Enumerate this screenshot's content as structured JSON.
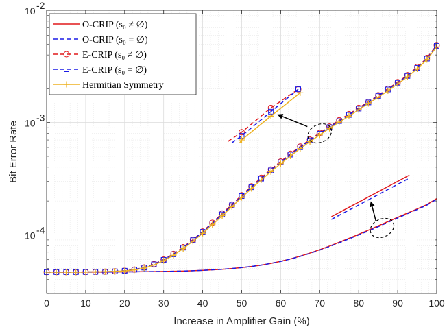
{
  "chart_data": {
    "type": "line",
    "xlabel": "Increase in Amplifier Gain (%)",
    "ylabel": "Bit Error Rate",
    "xlim": [
      0,
      100
    ],
    "ylim": [
      3e-05,
      0.01
    ],
    "yscale": "log",
    "grid": true,
    "minor_grid": true,
    "legend_position": "top-left",
    "x_ticks": [
      0,
      10,
      20,
      30,
      40,
      50,
      60,
      70,
      80,
      90,
      100
    ],
    "x_tick_labels": [
      "0",
      "10",
      "20",
      "30",
      "40",
      "50",
      "60",
      "70",
      "80",
      "90",
      "100"
    ],
    "y_ticks": [
      0.0001,
      0.001,
      0.01
    ],
    "y_tick_labels": [
      {
        "base": "10",
        "exp": "-4"
      },
      {
        "base": "10",
        "exp": "-3"
      },
      {
        "base": "10",
        "exp": "-2"
      }
    ],
    "legend": [
      {
        "label": "O-CRIP (s₀ ≠ ∅)",
        "color": "#e0191c",
        "dash": "solid",
        "marker": "none"
      },
      {
        "label": "O-CRIP (s₀ = ∅)",
        "color": "#1a1ae6",
        "dash": "dashed",
        "marker": "none"
      },
      {
        "label": "E-CRIP (s₀ ≠ ∅)",
        "color": "#e0191c",
        "dash": "dashed",
        "marker": "circle"
      },
      {
        "label": "E-CRIP (s₀ = ∅)",
        "color": "#1a1ae6",
        "dash": "dashed",
        "marker": "square"
      },
      {
        "label": "Hermitian Symmetry",
        "color": "#edb120",
        "dash": "solid",
        "marker": "plus"
      }
    ],
    "x": [
      0,
      2.5,
      5,
      7.5,
      10,
      12.5,
      15,
      17.5,
      20,
      22.5,
      25,
      27.5,
      30,
      32.5,
      35,
      37.5,
      40,
      42.5,
      45,
      47.5,
      50,
      52.5,
      55,
      57.5,
      60,
      62.5,
      65,
      67.5,
      70,
      72.5,
      75,
      77.5,
      80,
      82.5,
      85,
      87.5,
      90,
      92.5,
      95,
      97.5,
      100
    ],
    "series": [
      {
        "name": "O-CRIP (s₀ ≠ ∅)",
        "color": "#e0191c",
        "dash": "solid",
        "marker": "none",
        "values": [
          4.65e-05,
          4.65e-05,
          4.65e-05,
          4.65e-05,
          4.65e-05,
          4.65e-05,
          4.65e-05,
          4.66e-05,
          4.67e-05,
          4.68e-05,
          4.69e-05,
          4.7e-05,
          4.71e-05,
          4.73e-05,
          4.75e-05,
          4.78e-05,
          4.82e-05,
          4.87e-05,
          4.93e-05,
          5e-05,
          5.1e-05,
          5.22e-05,
          5.37e-05,
          5.56e-05,
          5.8e-05,
          6.1e-05,
          6.45e-05,
          6.87e-05,
          7.36e-05,
          7.92e-05,
          8.57e-05,
          9.3e-05,
          0.000101,
          0.00011,
          0.00012,
          0.000131,
          0.000143,
          0.000156,
          0.00017,
          0.000186,
          0.00021
        ]
      },
      {
        "name": "O-CRIP (s₀ = ∅)",
        "color": "#1a1ae6",
        "dash": "dashed",
        "marker": "none",
        "values": [
          4.65e-05,
          4.65e-05,
          4.65e-05,
          4.65e-05,
          4.65e-05,
          4.65e-05,
          4.65e-05,
          4.66e-05,
          4.67e-05,
          4.68e-05,
          4.69e-05,
          4.7e-05,
          4.71e-05,
          4.73e-05,
          4.75e-05,
          4.78e-05,
          4.82e-05,
          4.87e-05,
          4.93e-05,
          5e-05,
          5.1e-05,
          5.22e-05,
          5.37e-05,
          5.56e-05,
          5.79e-05,
          6.08e-05,
          6.42e-05,
          6.83e-05,
          7.3e-05,
          7.85e-05,
          8.48e-05,
          9.19e-05,
          9.98e-05,
          0.000108,
          0.000118,
          0.000129,
          0.000141,
          0.000154,
          0.000168,
          0.000184,
          0.000207
        ]
      },
      {
        "name": "E-CRIP (s₀ ≠ ∅)",
        "color": "#e0191c",
        "dash": "dashed",
        "marker": "circle",
        "values": [
          4.65e-05,
          4.65e-05,
          4.65e-05,
          4.65e-05,
          4.66e-05,
          4.67e-05,
          4.69e-05,
          4.72e-05,
          4.78e-05,
          4.9e-05,
          5.12e-05,
          5.48e-05,
          6.02e-05,
          6.75e-05,
          7.75e-05,
          9.05e-05,
          0.000107,
          0.000128,
          0.000155,
          0.000186,
          0.000225,
          0.00027,
          0.000322,
          0.000382,
          0.00045,
          0.000527,
          0.000612,
          0.000705,
          0.000808,
          0.000921,
          0.00105,
          0.00119,
          0.00135,
          0.00153,
          0.00175,
          0.002,
          0.00229,
          0.00264,
          0.00312,
          0.00376,
          0.0049
        ]
      },
      {
        "name": "E-CRIP (s₀ = ∅)",
        "color": "#1a1ae6",
        "dash": "dashed",
        "marker": "square",
        "values": [
          4.65e-05,
          4.65e-05,
          4.65e-05,
          4.65e-05,
          4.66e-05,
          4.67e-05,
          4.69e-05,
          4.72e-05,
          4.78e-05,
          4.89e-05,
          5.1e-05,
          5.45e-05,
          5.98e-05,
          6.7e-05,
          7.68e-05,
          8.95e-05,
          0.000106,
          0.000126,
          0.000152,
          0.000183,
          0.000221,
          0.000265,
          0.000316,
          0.000375,
          0.000442,
          0.000518,
          0.000602,
          0.000694,
          0.000796,
          0.000908,
          0.00103,
          0.00117,
          0.00133,
          0.00151,
          0.00172,
          0.00197,
          0.00226,
          0.0026,
          0.00307,
          0.00371,
          0.00482
        ]
      },
      {
        "name": "Hermitian Symmetry",
        "color": "#edb120",
        "dash": "solid",
        "marker": "plus",
        "values": [
          4.65e-05,
          4.65e-05,
          4.65e-05,
          4.65e-05,
          4.66e-05,
          4.67e-05,
          4.69e-05,
          4.71e-05,
          4.76e-05,
          4.86e-05,
          5.05e-05,
          5.38e-05,
          5.88e-05,
          6.57e-05,
          7.52e-05,
          8.76e-05,
          0.000103,
          0.000123,
          0.000148,
          0.000178,
          0.000215,
          0.000258,
          0.000308,
          0.000365,
          0.00043,
          0.000504,
          0.000586,
          0.000676,
          0.000776,
          0.000886,
          0.00101,
          0.00114,
          0.0013,
          0.00148,
          0.00168,
          0.00192,
          0.00221,
          0.00255,
          0.00301,
          0.00364,
          0.00472
        ]
      }
    ],
    "annotations": [
      {
        "type": "zoom-inset",
        "target": {
          "x": 70,
          "y": 0.0008
        },
        "inset": {
          "x": [
            46,
            66
          ],
          "y": [
            0.00063,
            0.002
          ]
        },
        "lines": [
          {
            "color": "#e0191c",
            "dash": "dashed",
            "marker": "circle",
            "points": [
              [
                46.5,
                0.00068
              ],
              [
                50,
                0.00082
              ],
              [
                57.5,
                0.00135
              ],
              [
                64.5,
                0.00198
              ]
            ]
          },
          {
            "color": "#1a1ae6",
            "dash": "dashed",
            "marker": "square",
            "points": [
              [
                47.5,
                0.00066
              ],
              [
                50,
                0.00076
              ],
              [
                57.5,
                0.00125
              ],
              [
                64.5,
                0.00198
              ]
            ]
          },
          {
            "color": "#edb120",
            "dash": "solid",
            "marker": "plus",
            "points": [
              [
                49.5,
                0.00066
              ],
              [
                50,
                0.0007
              ],
              [
                57.5,
                0.00114
              ],
              [
                65,
                0.00184
              ]
            ]
          }
        ]
      },
      {
        "type": "zoom-inset",
        "target": {
          "x": 86,
          "y": 0.000115
        },
        "inset": {
          "x": [
            73,
            93
          ],
          "y": [
            0.00013,
            0.00036
          ]
        },
        "lines": [
          {
            "color": "#e0191c",
            "dash": "solid",
            "marker": "none",
            "points": [
              [
                73,
                0.000145
              ],
              [
                93,
                0.00034
              ]
            ]
          },
          {
            "color": "#1a1ae6",
            "dash": "dashed",
            "marker": "none",
            "points": [
              [
                73,
                0.000137
              ],
              [
                93,
                0.00032
              ]
            ]
          }
        ]
      }
    ]
  }
}
